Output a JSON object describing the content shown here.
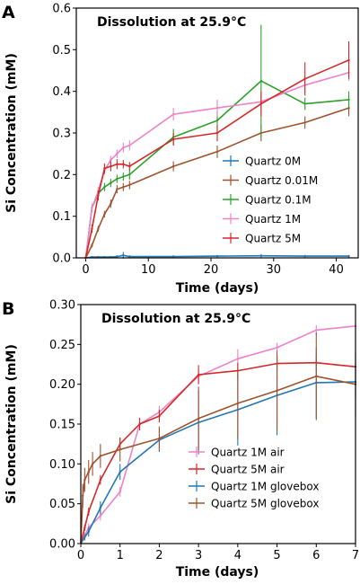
{
  "chart_data": [
    {
      "type": "line",
      "panel_label": "A",
      "title": "Dissolution at 25.9°C",
      "xlabel": "Time (days)",
      "ylabel": "Si Concentration (mM)",
      "xlim": [
        -1.5,
        43.5
      ],
      "ylim": [
        0,
        0.6
      ],
      "xticks": [
        "0",
        "10",
        "20",
        "30",
        "40"
      ],
      "yticks": [
        "0.0",
        "0.1",
        "0.2",
        "0.3",
        "0.4",
        "0.5",
        "0.6"
      ],
      "grid": false,
      "legend_position": "center-right",
      "series": [
        {
          "name": "Quartz 0M",
          "color": "#1f77b4",
          "x": [
            0,
            1,
            2,
            3,
            4,
            5,
            6,
            7,
            14,
            21,
            28,
            35,
            42
          ],
          "y": [
            0,
            0.002,
            0.002,
            0.002,
            0.002,
            0.003,
            0.006,
            0.003,
            0.003,
            0.004,
            0.005,
            0.004,
            0.004
          ],
          "err": [
            0,
            0.002,
            0.002,
            0.002,
            0.002,
            0.003,
            0.008,
            0.003,
            0.003,
            0.003,
            0.004,
            0.003,
            0.003
          ]
        },
        {
          "name": "Quartz 0.01M",
          "color": "#a0522d",
          "x": [
            0,
            1,
            2,
            3,
            4,
            5,
            6,
            7,
            14,
            21,
            28,
            35,
            42
          ],
          "y": [
            0,
            0.03,
            0.07,
            0.105,
            0.13,
            0.165,
            0.17,
            0.175,
            0.22,
            0.255,
            0.3,
            0.325,
            0.36
          ],
          "err": [
            0,
            0.005,
            0.007,
            0.008,
            0.01,
            0.01,
            0.01,
            0.01,
            0.012,
            0.015,
            0.02,
            0.015,
            0.02
          ]
        },
        {
          "name": "Quartz 0.1M",
          "color": "#2ca02c",
          "x": [
            0,
            1,
            2,
            3,
            4,
            5,
            6,
            7,
            14,
            21,
            28,
            35,
            42
          ],
          "y": [
            0,
            0.12,
            0.155,
            0.17,
            0.18,
            0.19,
            0.195,
            0.2,
            0.29,
            0.33,
            0.425,
            0.37,
            0.38
          ],
          "err": [
            0,
            0.01,
            0.01,
            0.01,
            0.01,
            0.01,
            0.01,
            0.012,
            0.02,
            0.02,
            0.135,
            0.015,
            0.02
          ]
        },
        {
          "name": "Quartz 1M",
          "color": "#ee82c8",
          "x": [
            0,
            1,
            2,
            3,
            4,
            5,
            6,
            7,
            14,
            21,
            28,
            35,
            42
          ],
          "y": [
            0,
            0.12,
            0.16,
            0.21,
            0.235,
            0.25,
            0.265,
            0.27,
            0.345,
            0.36,
            0.375,
            0.415,
            0.445
          ],
          "err": [
            0,
            0.01,
            0.01,
            0.01,
            0.01,
            0.01,
            0.012,
            0.012,
            0.015,
            0.02,
            0.02,
            0.02,
            0.02
          ]
        },
        {
          "name": "Quartz 5M",
          "color": "#d62728",
          "x": [
            0,
            1,
            2,
            3,
            4,
            5,
            6,
            7,
            14,
            21,
            28,
            35,
            42
          ],
          "y": [
            0,
            0.07,
            0.15,
            0.215,
            0.22,
            0.225,
            0.225,
            0.22,
            0.285,
            0.3,
            0.37,
            0.43,
            0.475
          ],
          "err": [
            0,
            0.01,
            0.012,
            0.012,
            0.012,
            0.012,
            0.01,
            0.01,
            0.015,
            0.02,
            0.03,
            0.04,
            0.045
          ]
        }
      ]
    },
    {
      "type": "line",
      "panel_label": "B",
      "title": "Dissolution at 25.9°C",
      "xlabel": "Time (days)",
      "ylabel": "Si Concentration (mM)",
      "xlim": [
        0,
        7
      ],
      "ylim": [
        0,
        0.3
      ],
      "xticks": [
        "0",
        "1",
        "2",
        "3",
        "4",
        "5",
        "6",
        "7"
      ],
      "yticks": [
        "0.00",
        "0.05",
        "0.10",
        "0.15",
        "0.20",
        "0.25",
        "0.30"
      ],
      "grid": false,
      "legend_position": "lower-right",
      "series": [
        {
          "name": "Quartz 1M air",
          "color": "#ee82c8",
          "x": [
            0,
            0.1,
            0.2,
            0.5,
            1,
            1.5,
            2,
            3,
            4,
            5,
            6,
            7
          ],
          "y": [
            0,
            0.01,
            0.02,
            0.035,
            0.065,
            0.15,
            0.165,
            0.21,
            0.232,
            0.246,
            0.268,
            0.273
          ],
          "err": [
            0,
            0.004,
            0.005,
            0.006,
            0.006,
            0.006,
            0.008,
            0.008,
            0.012,
            0.006,
            0.006,
            0.005
          ]
        },
        {
          "name": "Quartz 5M air",
          "color": "#d62728",
          "x": [
            0,
            0.1,
            0.2,
            0.5,
            1,
            1.5,
            2,
            3,
            4,
            5,
            6,
            7
          ],
          "y": [
            0,
            0.02,
            0.04,
            0.08,
            0.125,
            0.15,
            0.16,
            0.212,
            0.217,
            0.226,
            0.227,
            0.222
          ],
          "err": [
            0,
            0.004,
            0.005,
            0.006,
            0.008,
            0.008,
            0.008,
            0.012,
            0.01,
            0.008,
            0.007,
            0.005
          ]
        },
        {
          "name": "Quartz 1M glovebox",
          "color": "#1f77b4",
          "x": [
            0,
            0.1,
            0.2,
            0.5,
            1,
            2,
            3,
            4,
            5,
            6,
            7
          ],
          "y": [
            0,
            0.008,
            0.015,
            0.045,
            0.09,
            0.13,
            0.152,
            0.168,
            0.186,
            0.202,
            0.203
          ],
          "err": [
            0,
            0.004,
            0.006,
            0.008,
            0.01,
            0.015,
            0.04,
            0.045,
            0.05,
            0.045,
            0.02
          ]
        },
        {
          "name": "Quartz 5M glovebox",
          "color": "#a0522d",
          "x": [
            0,
            0.05,
            0.1,
            0.2,
            0.3,
            0.5,
            1,
            2,
            3,
            4,
            5,
            6,
            7
          ],
          "y": [
            0,
            0.06,
            0.08,
            0.09,
            0.1,
            0.11,
            0.118,
            0.132,
            0.157,
            0.176,
            0.192,
            0.21,
            0.2
          ],
          "err": [
            0,
            0.015,
            0.015,
            0.015,
            0.015,
            0.015,
            0.015,
            0.015,
            0.04,
            0.045,
            0.05,
            0.055,
            0.04
          ]
        }
      ]
    }
  ]
}
